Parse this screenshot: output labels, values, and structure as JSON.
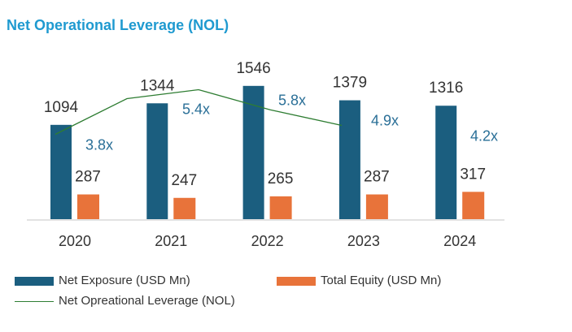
{
  "chart_data": {
    "type": "bar",
    "title": "Net Operational Leverage (NOL)",
    "categories": [
      "2020",
      "2021",
      "2022",
      "2023",
      "2024"
    ],
    "series": [
      {
        "name": "Net Exposure (USD Mn)",
        "type": "bar",
        "color": "#1b5e7f",
        "values": [
          1094,
          1344,
          1546,
          1379,
          1316
        ]
      },
      {
        "name": "Total Equity (USD Mn)",
        "type": "bar",
        "color": "#e8733a",
        "values": [
          287,
          247,
          265,
          287,
          317
        ]
      },
      {
        "name": "Net Opreational Leverage (NOL)",
        "type": "line",
        "color": "#2e7d32",
        "values": [
          3.8,
          5.4,
          5.8,
          4.9,
          4.2
        ],
        "labels": [
          "3.8x",
          "5.4x",
          "5.8x",
          "4.9x",
          "4.2x"
        ],
        "label_color": "#2a6f97"
      }
    ],
    "legend_position": "bottom-left",
    "grid": false
  }
}
